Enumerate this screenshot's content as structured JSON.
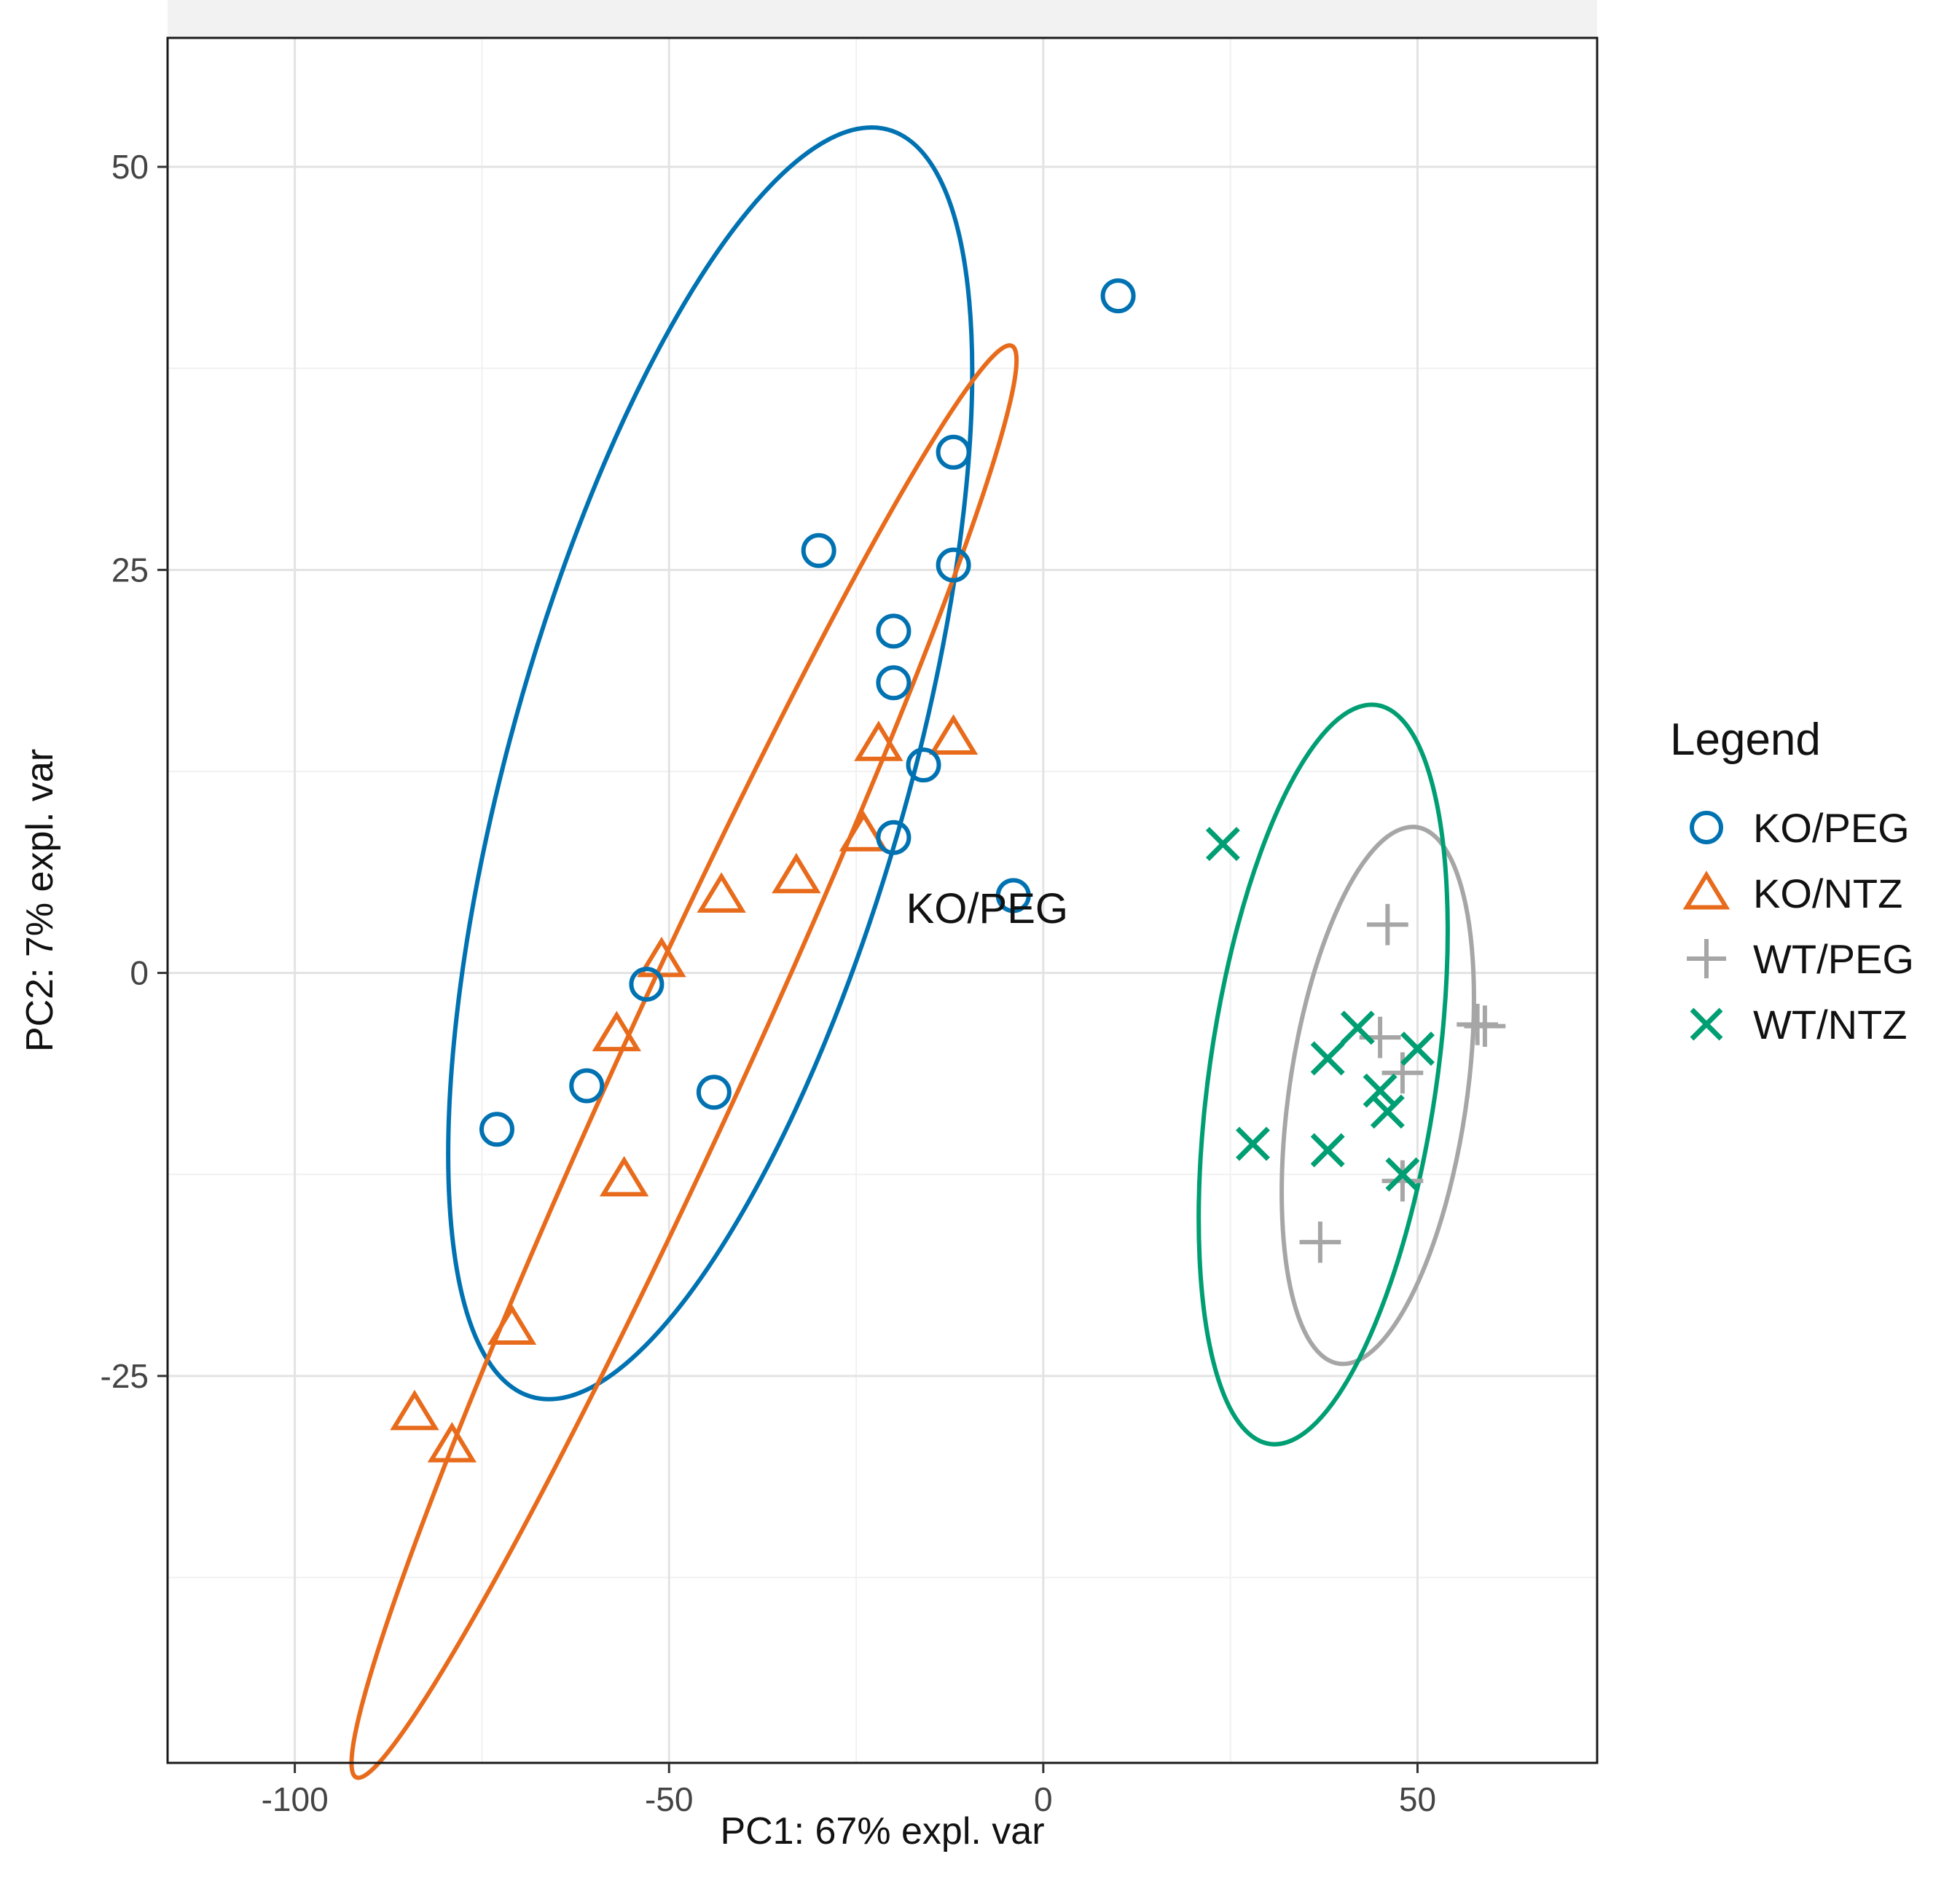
{
  "chart_data": {
    "type": "scatter",
    "xlabel": "PC1: 67% expl. var",
    "ylabel": "PC2: 7% expl. var",
    "xlim": [
      -117,
      74
    ],
    "ylim": [
      -49,
      58
    ],
    "xticks": [
      -100,
      -50,
      0,
      50
    ],
    "yticks": [
      -25,
      0,
      25,
      50
    ],
    "xtick_labels": [
      "-100",
      "-50",
      "0",
      "50"
    ],
    "ytick_labels": [
      "-25",
      "0",
      "25",
      "50"
    ],
    "grid": true,
    "legend": {
      "title": "Legend",
      "position": "right",
      "entries": [
        "KO/PEG",
        "KO/NTZ",
        "WT/PEG",
        "WT/NTZ"
      ]
    },
    "annotations": [
      {
        "text": "KO/PEG",
        "x": -7.5,
        "y": 3.8
      }
    ],
    "series": [
      {
        "name": "KO/PEG",
        "marker": "circle",
        "color": "#0072B2",
        "points": [
          [
            10,
            42
          ],
          [
            -12,
            32.3
          ],
          [
            -30,
            26.2
          ],
          [
            -12,
            25.3
          ],
          [
            -20,
            21.2
          ],
          [
            -20,
            18
          ],
          [
            -16,
            12.9
          ],
          [
            -20,
            8.4
          ],
          [
            -4,
            4.8
          ],
          [
            -53,
            -0.7
          ],
          [
            -61,
            -7
          ],
          [
            -44,
            -7.4
          ],
          [
            -73,
            -9.7
          ]
        ],
        "ellipse": {
          "cx": -44.5,
          "cy": 13,
          "rx": 47.5,
          "ry": 22.9,
          "angle": 50.5
        }
      },
      {
        "name": "KO/NTZ",
        "marker": "triangle",
        "color": "#E86B1C",
        "points": [
          [
            -12,
            14.6
          ],
          [
            -22,
            14.2
          ],
          [
            -24,
            8.6
          ],
          [
            -33,
            6
          ],
          [
            -43,
            4.8
          ],
          [
            -51,
            0.8
          ],
          [
            -57,
            -3.8
          ],
          [
            -56,
            -12.8
          ],
          [
            -71,
            -22
          ],
          [
            -84,
            -27.3
          ],
          [
            -79,
            -29.3
          ]
        ],
        "ellipse": {
          "cx": -48,
          "cy": -5.5,
          "rx": 62.5,
          "ry": 6.4,
          "angle": 45
        }
      },
      {
        "name": "WT/PEG",
        "marker": "plus",
        "color": "#A6A6A6",
        "points": [
          [
            46,
            3
          ],
          [
            58,
            -3.2
          ],
          [
            59,
            -3.3
          ],
          [
            45,
            -4
          ],
          [
            48,
            -6.2
          ],
          [
            48,
            -12.9
          ],
          [
            37,
            -16.7
          ]
        ],
        "ellipse": {
          "cx": 44.7,
          "cy": -7.6,
          "rx": 17.8,
          "ry": 11.2,
          "angle": 63
        }
      },
      {
        "name": "WT/NTZ",
        "marker": "x",
        "color": "#009E73",
        "points": [
          [
            24,
            8
          ],
          [
            42,
            -3.4
          ],
          [
            38,
            -5.3
          ],
          [
            50,
            -4.7
          ],
          [
            45,
            -7.3
          ],
          [
            46,
            -8.6
          ],
          [
            28,
            -10.6
          ],
          [
            38,
            -11
          ],
          [
            48,
            -12.5
          ]
        ],
        "ellipse": {
          "cx": 37.4,
          "cy": -6.3,
          "rx": 24.4,
          "ry": 14.4,
          "angle": 65
        }
      }
    ]
  }
}
